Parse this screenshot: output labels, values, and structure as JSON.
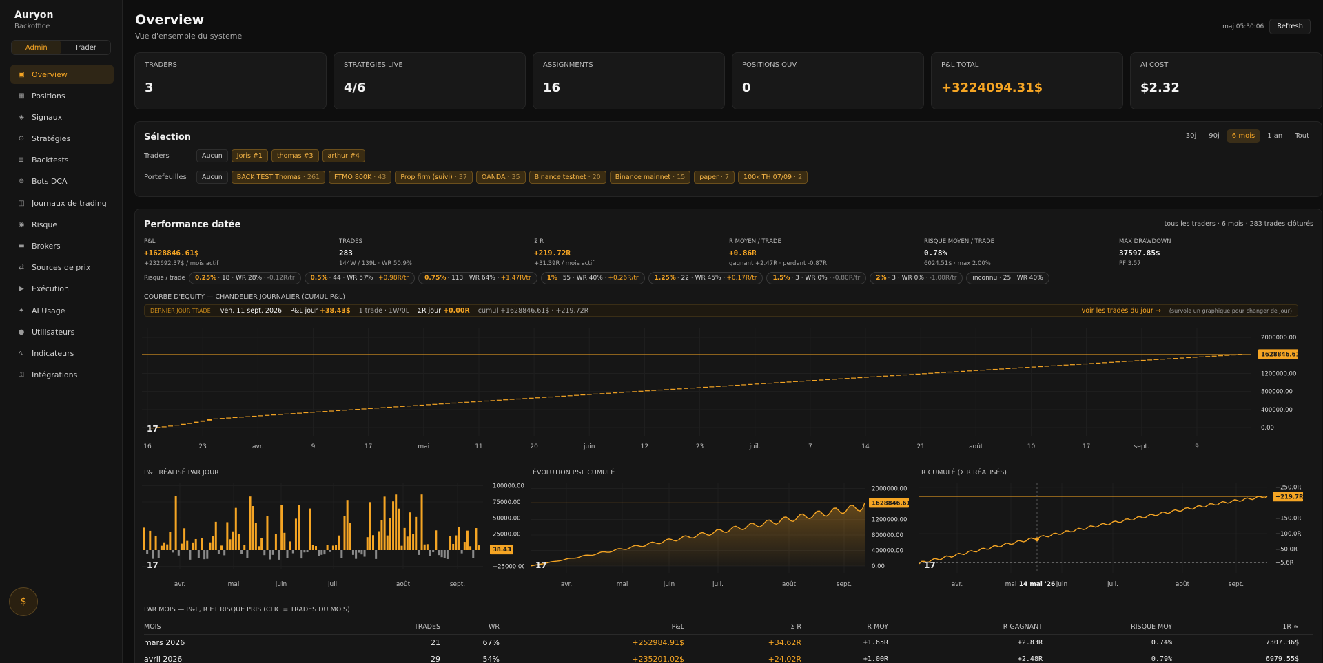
{
  "sidebar": {
    "brand": "Auryon",
    "sub": "Backoffice",
    "modes": [
      "Admin",
      "Trader"
    ],
    "items": [
      {
        "label": "Overview",
        "icon": "▣"
      },
      {
        "label": "Positions",
        "icon": "▦"
      },
      {
        "label": "Signaux",
        "icon": "◈"
      },
      {
        "label": "Stratégies",
        "icon": "⊙"
      },
      {
        "label": "Backtests",
        "icon": "≣"
      },
      {
        "label": "Bots DCA",
        "icon": "⊖"
      },
      {
        "label": "Journaux de trading",
        "icon": "◫"
      },
      {
        "label": "Risque",
        "icon": "◉"
      },
      {
        "label": "Brokers",
        "icon": "▬"
      },
      {
        "label": "Sources de prix",
        "icon": "⇄"
      },
      {
        "label": "Exécution",
        "icon": "▶"
      },
      {
        "label": "AI Usage",
        "icon": "✦"
      },
      {
        "label": "Utilisateurs",
        "icon": "●"
      },
      {
        "label": "Indicateurs",
        "icon": "∿"
      },
      {
        "label": "Intégrations",
        "icon": "⚿"
      }
    ],
    "coin_icon": "$"
  },
  "header": {
    "title": "Overview",
    "subtitle": "Vue d'ensemble du systeme",
    "updated": "maj 05:30:06",
    "refresh": "Refresh"
  },
  "kpis": [
    {
      "label": "Traders",
      "value": "3"
    },
    {
      "label": "Stratégies live",
      "value": "4/6"
    },
    {
      "label": "Assignments",
      "value": "16"
    },
    {
      "label": "Positions ouv.",
      "value": "0"
    },
    {
      "label": "P&L total",
      "value": "+3224094.31$"
    },
    {
      "label": "AI cost",
      "value": "$2.32"
    }
  ],
  "selection": {
    "title": "Sélection",
    "ranges": [
      "30j",
      "90j",
      "6 mois",
      "1 an",
      "Tout"
    ],
    "traders_label": "Traders",
    "none_label": "Aucun",
    "traders": [
      "Joris #1",
      "thomas #3",
      "arthur #4"
    ],
    "portfolios_label": "Portefeuilles",
    "portfolios": [
      {
        "name": "BACK TEST Thomas",
        "count": "· 261"
      },
      {
        "name": "FTMO 800K",
        "count": "· 43"
      },
      {
        "name": "Prop firm (suivi)",
        "count": "· 37"
      },
      {
        "name": "OANDA",
        "count": "· 35"
      },
      {
        "name": "Binance testnet",
        "count": "· 20"
      },
      {
        "name": "Binance mainnet",
        "count": "· 15"
      },
      {
        "name": "paper",
        "count": "· 7"
      },
      {
        "name": "100k TH 07/09",
        "count": "· 2"
      }
    ]
  },
  "performance": {
    "title": "Performance datée",
    "meta": "tous les traders · 6 mois · 283 trades clôturés",
    "stats": [
      {
        "label": "P&L",
        "value": "+1628846.61$",
        "sub": "+232692.37$ / mois actif",
        "gold": true
      },
      {
        "label": "Trades",
        "value": "283",
        "sub": "144W / 139L · WR 50.9%",
        "gold": false
      },
      {
        "label": "Σ R",
        "value": "+219.72R",
        "sub": "+31.39R / mois actif",
        "gold": true
      },
      {
        "label": "R moyen / trade",
        "value": "+0.86R",
        "sub": "gagnant +2.47R · perdant -0.87R",
        "gold": true
      },
      {
        "label": "Risque moyen / trade",
        "value": "0.78%",
        "sub": "6024.51$ · max 2.00%",
        "gold": false
      },
      {
        "label": "Max drawdown",
        "value": "37597.85$",
        "sub": "PF 3.57",
        "gold": false
      }
    ],
    "risk_label": "Risque / trade",
    "risk_pills": [
      {
        "k": "0.25%",
        "mid": "· 18 · WR 28% ·",
        "r": "-0.12R/tr",
        "neg": true
      },
      {
        "k": "0.5%",
        "mid": "· 44 · WR 57% ·",
        "r": "+0.98R/tr",
        "neg": false
      },
      {
        "k": "0.75%",
        "mid": "· 113 · WR 64% ·",
        "r": "+1.47R/tr",
        "neg": false
      },
      {
        "k": "1%",
        "mid": "· 55 · WR 40% ·",
        "r": "+0.26R/tr",
        "neg": false
      },
      {
        "k": "1.25%",
        "mid": "· 22 · WR 45% ·",
        "r": "+0.17R/tr",
        "neg": false
      },
      {
        "k": "1.5%",
        "mid": "· 3 · WR 0% ·",
        "r": "-0.80R/tr",
        "neg": true
      },
      {
        "k": "2%",
        "mid": "· 3 · WR 0% ·",
        "r": "-1.00R/tr",
        "neg": true
      },
      {
        "k": "",
        "mid": "inconnu · 25 · WR 40%",
        "r": "",
        "neg": false
      }
    ],
    "equity_title": "Courbe d'equity — chandelier journalier (cumul P&L)",
    "day_bar": {
      "label": "Dernier jour tradé",
      "date": "ven. 11 sept. 2026",
      "pnl_label": "P&L jour",
      "pnl_value": "+38.43$",
      "trades": "1 trade · 1W/0L",
      "r_label": "ΣR jour",
      "r_value": "+0.00R",
      "cumul": "cumul +1628846.61$ · +219.72R",
      "link": "voir les trades du jour →",
      "hint": "(survole un graphique pour changer de jour)"
    },
    "daily_title": "P&L réalisé par jour",
    "cumul_title": "Évolution P&L cumulé",
    "r_title": "R cumulé (Σ R réalisés)"
  },
  "charts": {
    "equity": {
      "x_labels": [
        "16",
        "23",
        "avr.",
        "9",
        "17",
        "mai",
        "11",
        "20",
        "juin",
        "12",
        "23",
        "juil.",
        "7",
        "14",
        "21",
        "août",
        "10",
        "17",
        "sept.",
        "9"
      ],
      "y_ticks": [
        "2000000.00",
        "1200000.00",
        "800000.00",
        "400000.00",
        "0.00"
      ],
      "last": "1628846.61",
      "watermark": "17"
    },
    "daily": {
      "x_labels": [
        "avr.",
        "mai",
        "juin",
        "juil.",
        "août",
        "sept."
      ],
      "y_ticks": [
        "100000.00",
        "75000.00",
        "50000.00",
        "25000.00",
        "−25000.00"
      ],
      "last": "38.43"
    },
    "cumul": {
      "x_labels": [
        "avr.",
        "mai",
        "juin",
        "juil.",
        "août",
        "sept."
      ],
      "y_ticks": [
        "2000000.00",
        "1200000.00",
        "800000.00",
        "400000.00",
        "0.00"
      ],
      "last": "1628846.61"
    },
    "rchart": {
      "x_labels": [
        "avr.",
        "mai",
        "14 mai '26",
        "juin",
        "juil.",
        "août",
        "sept."
      ],
      "y_ticks": [
        "+250.0R",
        "+150.0R",
        "+100.0R",
        "+50.0R",
        "+5.6R"
      ],
      "last": "+219.7R"
    }
  },
  "monthly": {
    "title": "Par mois — P&L, R et risque pris (clic = trades du mois)",
    "columns": [
      "Mois",
      "Trades",
      "WR",
      "P&L",
      "Σ R",
      "R moy",
      "R gagnant",
      "Risque moy",
      "1R ≈"
    ],
    "rows": [
      [
        "mars 2026",
        "21",
        "67%",
        "+252984.91$",
        "+34.62R",
        "+1.65R",
        "+2.83R",
        "0.74%",
        "7307.36$"
      ],
      [
        "avril 2026",
        "29",
        "54%",
        "+235201.02$",
        "+24.02R",
        "+1.00R",
        "+2.48R",
        "0.79%",
        "6979.55$"
      ]
    ]
  },
  "colors": {
    "accent": "#f5a524",
    "negative": "#8a8a8a",
    "background": "#0e0e0e"
  }
}
